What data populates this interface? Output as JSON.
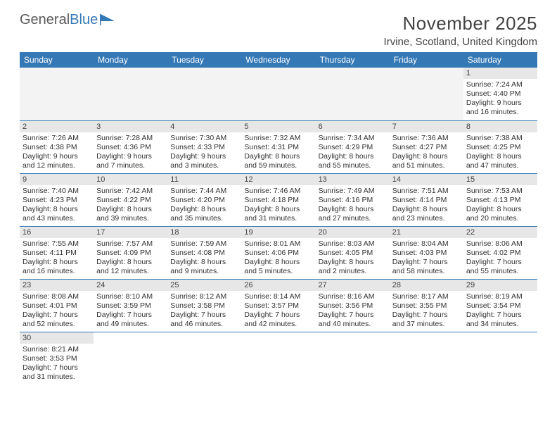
{
  "logo": {
    "grey": "General",
    "blue": "Blue"
  },
  "title": {
    "month": "November 2025",
    "location": "Irvine, Scotland, United Kingdom"
  },
  "colors": {
    "header_bg": "#3478b6",
    "daynum_bg": "#e7e7e7",
    "empty_bg": "#f3f3f3",
    "rule": "#3478b6"
  },
  "day_headers": [
    "Sunday",
    "Monday",
    "Tuesday",
    "Wednesday",
    "Thursday",
    "Friday",
    "Saturday"
  ],
  "weeks": [
    [
      null,
      null,
      null,
      null,
      null,
      null,
      {
        "n": "1",
        "sr": "Sunrise: 7:24 AM",
        "ss": "Sunset: 4:40 PM",
        "dl": "Daylight: 9 hours and 16 minutes."
      }
    ],
    [
      {
        "n": "2",
        "sr": "Sunrise: 7:26 AM",
        "ss": "Sunset: 4:38 PM",
        "dl": "Daylight: 9 hours and 12 minutes."
      },
      {
        "n": "3",
        "sr": "Sunrise: 7:28 AM",
        "ss": "Sunset: 4:36 PM",
        "dl": "Daylight: 9 hours and 7 minutes."
      },
      {
        "n": "4",
        "sr": "Sunrise: 7:30 AM",
        "ss": "Sunset: 4:33 PM",
        "dl": "Daylight: 9 hours and 3 minutes."
      },
      {
        "n": "5",
        "sr": "Sunrise: 7:32 AM",
        "ss": "Sunset: 4:31 PM",
        "dl": "Daylight: 8 hours and 59 minutes."
      },
      {
        "n": "6",
        "sr": "Sunrise: 7:34 AM",
        "ss": "Sunset: 4:29 PM",
        "dl": "Daylight: 8 hours and 55 minutes."
      },
      {
        "n": "7",
        "sr": "Sunrise: 7:36 AM",
        "ss": "Sunset: 4:27 PM",
        "dl": "Daylight: 8 hours and 51 minutes."
      },
      {
        "n": "8",
        "sr": "Sunrise: 7:38 AM",
        "ss": "Sunset: 4:25 PM",
        "dl": "Daylight: 8 hours and 47 minutes."
      }
    ],
    [
      {
        "n": "9",
        "sr": "Sunrise: 7:40 AM",
        "ss": "Sunset: 4:23 PM",
        "dl": "Daylight: 8 hours and 43 minutes."
      },
      {
        "n": "10",
        "sr": "Sunrise: 7:42 AM",
        "ss": "Sunset: 4:22 PM",
        "dl": "Daylight: 8 hours and 39 minutes."
      },
      {
        "n": "11",
        "sr": "Sunrise: 7:44 AM",
        "ss": "Sunset: 4:20 PM",
        "dl": "Daylight: 8 hours and 35 minutes."
      },
      {
        "n": "12",
        "sr": "Sunrise: 7:46 AM",
        "ss": "Sunset: 4:18 PM",
        "dl": "Daylight: 8 hours and 31 minutes."
      },
      {
        "n": "13",
        "sr": "Sunrise: 7:49 AM",
        "ss": "Sunset: 4:16 PM",
        "dl": "Daylight: 8 hours and 27 minutes."
      },
      {
        "n": "14",
        "sr": "Sunrise: 7:51 AM",
        "ss": "Sunset: 4:14 PM",
        "dl": "Daylight: 8 hours and 23 minutes."
      },
      {
        "n": "15",
        "sr": "Sunrise: 7:53 AM",
        "ss": "Sunset: 4:13 PM",
        "dl": "Daylight: 8 hours and 20 minutes."
      }
    ],
    [
      {
        "n": "16",
        "sr": "Sunrise: 7:55 AM",
        "ss": "Sunset: 4:11 PM",
        "dl": "Daylight: 8 hours and 16 minutes."
      },
      {
        "n": "17",
        "sr": "Sunrise: 7:57 AM",
        "ss": "Sunset: 4:09 PM",
        "dl": "Daylight: 8 hours and 12 minutes."
      },
      {
        "n": "18",
        "sr": "Sunrise: 7:59 AM",
        "ss": "Sunset: 4:08 PM",
        "dl": "Daylight: 8 hours and 9 minutes."
      },
      {
        "n": "19",
        "sr": "Sunrise: 8:01 AM",
        "ss": "Sunset: 4:06 PM",
        "dl": "Daylight: 8 hours and 5 minutes."
      },
      {
        "n": "20",
        "sr": "Sunrise: 8:03 AM",
        "ss": "Sunset: 4:05 PM",
        "dl": "Daylight: 8 hours and 2 minutes."
      },
      {
        "n": "21",
        "sr": "Sunrise: 8:04 AM",
        "ss": "Sunset: 4:03 PM",
        "dl": "Daylight: 7 hours and 58 minutes."
      },
      {
        "n": "22",
        "sr": "Sunrise: 8:06 AM",
        "ss": "Sunset: 4:02 PM",
        "dl": "Daylight: 7 hours and 55 minutes."
      }
    ],
    [
      {
        "n": "23",
        "sr": "Sunrise: 8:08 AM",
        "ss": "Sunset: 4:01 PM",
        "dl": "Daylight: 7 hours and 52 minutes."
      },
      {
        "n": "24",
        "sr": "Sunrise: 8:10 AM",
        "ss": "Sunset: 3:59 PM",
        "dl": "Daylight: 7 hours and 49 minutes."
      },
      {
        "n": "25",
        "sr": "Sunrise: 8:12 AM",
        "ss": "Sunset: 3:58 PM",
        "dl": "Daylight: 7 hours and 46 minutes."
      },
      {
        "n": "26",
        "sr": "Sunrise: 8:14 AM",
        "ss": "Sunset: 3:57 PM",
        "dl": "Daylight: 7 hours and 42 minutes."
      },
      {
        "n": "27",
        "sr": "Sunrise: 8:16 AM",
        "ss": "Sunset: 3:56 PM",
        "dl": "Daylight: 7 hours and 40 minutes."
      },
      {
        "n": "28",
        "sr": "Sunrise: 8:17 AM",
        "ss": "Sunset: 3:55 PM",
        "dl": "Daylight: 7 hours and 37 minutes."
      },
      {
        "n": "29",
        "sr": "Sunrise: 8:19 AM",
        "ss": "Sunset: 3:54 PM",
        "dl": "Daylight: 7 hours and 34 minutes."
      }
    ],
    [
      {
        "n": "30",
        "sr": "Sunrise: 8:21 AM",
        "ss": "Sunset: 3:53 PM",
        "dl": "Daylight: 7 hours and 31 minutes."
      },
      null,
      null,
      null,
      null,
      null,
      null
    ]
  ]
}
